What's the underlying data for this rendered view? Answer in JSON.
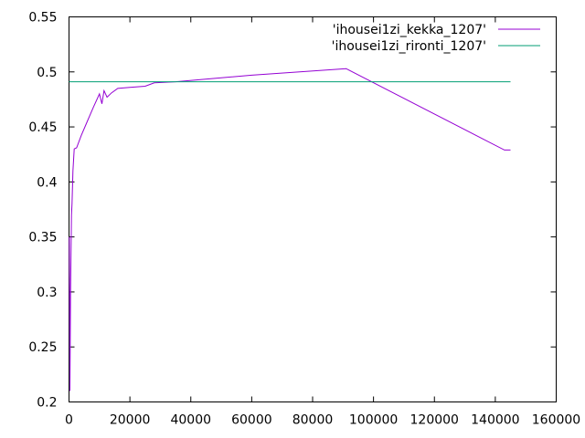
{
  "chart_data": {
    "type": "line",
    "title": "",
    "xlabel": "",
    "ylabel": "",
    "xlim": [
      0,
      160000
    ],
    "ylim": [
      0.2,
      0.55
    ],
    "x_ticks": [
      0,
      20000,
      40000,
      60000,
      80000,
      100000,
      120000,
      140000,
      160000
    ],
    "x_tick_labels": [
      "0",
      "20000",
      "40000",
      "60000",
      "80000",
      "100000",
      "120000",
      "140000",
      "160000"
    ],
    "y_ticks": [
      0.2,
      0.25,
      0.3,
      0.35,
      0.4,
      0.45,
      0.5,
      0.55
    ],
    "y_tick_labels": [
      "0.2",
      "0.25",
      "0.3",
      "0.35",
      "0.4",
      "0.45",
      "0.5",
      "0.55"
    ],
    "grid": false,
    "legend_position": "top-right",
    "series": [
      {
        "name": "'ihousei1zi_kekka_1207'",
        "color": "#9400d3",
        "points": [
          [
            100,
            0.35
          ],
          [
            300,
            0.21
          ],
          [
            500,
            0.3
          ],
          [
            800,
            0.37
          ],
          [
            1000,
            0.38
          ],
          [
            1300,
            0.41
          ],
          [
            1700,
            0.43
          ],
          [
            2500,
            0.431
          ],
          [
            4000,
            0.442
          ],
          [
            6000,
            0.455
          ],
          [
            8000,
            0.468
          ],
          [
            10000,
            0.48
          ],
          [
            10800,
            0.471
          ],
          [
            11500,
            0.483
          ],
          [
            12500,
            0.477
          ],
          [
            14000,
            0.481
          ],
          [
            16000,
            0.485
          ],
          [
            20000,
            0.486
          ],
          [
            25000,
            0.487
          ],
          [
            28000,
            0.49
          ],
          [
            35000,
            0.491
          ],
          [
            60000,
            0.497
          ],
          [
            91000,
            0.503
          ],
          [
            143000,
            0.429
          ],
          [
            145000,
            0.429
          ]
        ]
      },
      {
        "name": "'ihousei1zi_rironti_1207'",
        "color": "#009e73",
        "points": [
          [
            0,
            0.491
          ],
          [
            145000,
            0.491
          ]
        ]
      }
    ]
  }
}
